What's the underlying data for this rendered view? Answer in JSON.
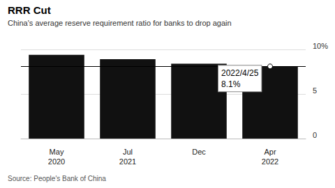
{
  "chart_data": {
    "type": "bar",
    "title": "RRR Cut",
    "subtitle": "China's average reserve requirement ratio for banks to drop again",
    "source": "Source: People's Bank of China",
    "categories": [
      "May\n2020",
      "Jul\n2021",
      "Dec",
      "Apr\n2022"
    ],
    "values": [
      9.4,
      8.9,
      8.4,
      8.1
    ],
    "color": "#111111",
    "ylim": [
      0,
      10
    ],
    "yticks": [
      0,
      5,
      {
        "value": 10,
        "label": "10%"
      }
    ],
    "grid": true,
    "annotation": {
      "text": "2022/4/25",
      "value": 8.1,
      "value_label": "8.1%"
    }
  }
}
